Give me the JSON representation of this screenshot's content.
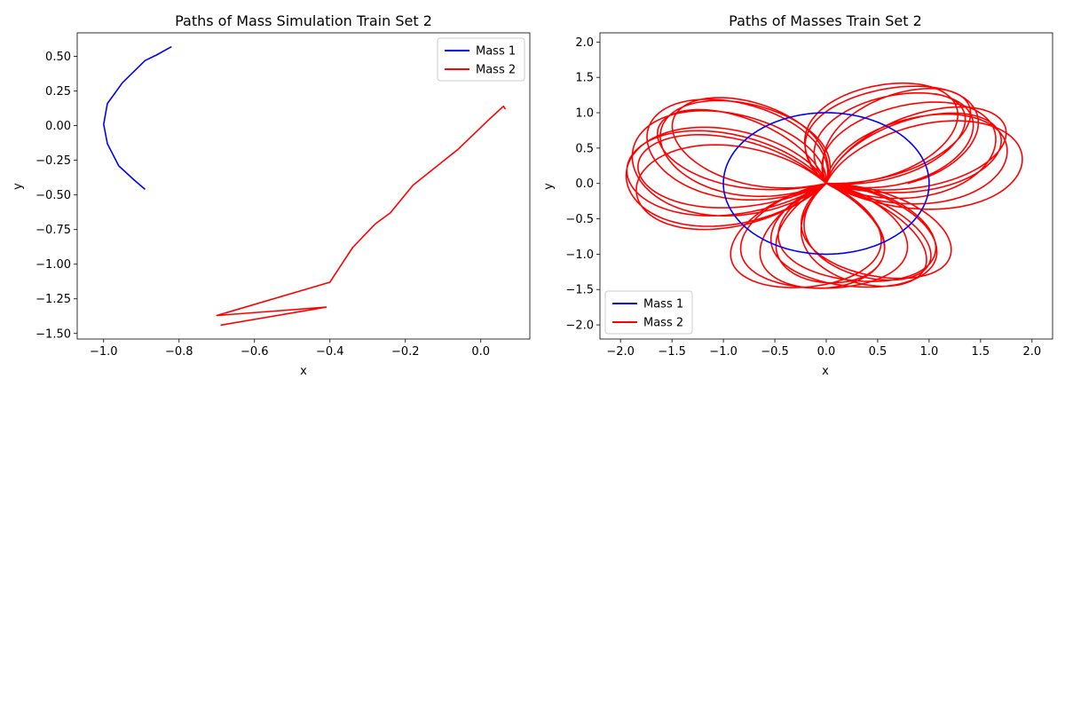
{
  "chart_data": [
    {
      "type": "line",
      "title": "Paths of Mass Simulation Train Set 2",
      "xlabel": "x",
      "ylabel": "y",
      "xlim": [
        -1.07,
        0.13
      ],
      "ylim": [
        -1.54,
        0.67
      ],
      "xticks": [
        -1.0,
        -0.8,
        -0.6,
        -0.4,
        -0.2,
        0.0
      ],
      "xtick_labels": [
        "−1.0",
        "−0.8",
        "−0.6",
        "−0.4",
        "−0.2",
        "0.0"
      ],
      "yticks": [
        0.5,
        0.25,
        0.0,
        -0.25,
        -0.5,
        -0.75,
        -1.0,
        -1.25,
        -1.5
      ],
      "ytick_labels": [
        "0.50",
        "0.25",
        "0.00",
        "−0.25",
        "−0.50",
        "−0.75",
        "−1.00",
        "−1.25",
        "−1.50"
      ],
      "legend": "upper right",
      "series": [
        {
          "name": "Mass 1",
          "color": "#0000ff",
          "x": [
            -0.82,
            -0.86,
            -0.89,
            -0.95,
            -0.99,
            -1.0,
            -0.99,
            -0.96,
            -0.92,
            -0.89
          ],
          "y": [
            0.57,
            0.51,
            0.47,
            0.31,
            0.16,
            0.01,
            -0.13,
            -0.29,
            -0.39,
            -0.46
          ]
        },
        {
          "name": "Mass 2",
          "color": "#ff0000",
          "x": [
            0.065,
            0.06,
            0.02,
            -0.06,
            -0.18,
            -0.24,
            -0.28,
            -0.34,
            -0.4,
            -0.7,
            -0.41,
            -0.69
          ],
          "y": [
            0.12,
            0.14,
            0.04,
            -0.17,
            -0.43,
            -0.63,
            -0.71,
            -0.88,
            -1.13,
            -1.37,
            -1.31,
            -1.44
          ]
        }
      ]
    },
    {
      "type": "line",
      "title": "Paths of Masses Train Set 2",
      "xlabel": "x",
      "ylabel": "y",
      "xlim": [
        -2.2,
        2.2
      ],
      "ylim": [
        -2.2,
        2.13
      ],
      "xticks": [
        -2.0,
        -1.5,
        -1.0,
        -0.5,
        0.0,
        0.5,
        1.0,
        1.5,
        2.0
      ],
      "xtick_labels": [
        "−2.0",
        "−1.5",
        "−1.0",
        "−0.5",
        "0.0",
        "0.5",
        "1.0",
        "1.5",
        "2.0"
      ],
      "yticks": [
        2.0,
        1.5,
        1.0,
        0.5,
        0.0,
        -0.5,
        -1.0,
        -1.5,
        -2.0
      ],
      "ytick_labels": [
        "2.0",
        "1.5",
        "1.0",
        "0.5",
        "0.0",
        "−0.5",
        "−1.0",
        "−1.5",
        "−2.0"
      ],
      "legend": "lower left",
      "series": [
        {
          "name": "Mass 1",
          "color": "#0000ff",
          "path": "unit circle (radius 1.0)"
        },
        {
          "name": "Mass 2",
          "color": "#ff0000",
          "path": "rosette of loops around origin, bounded within radius ~2.0"
        }
      ]
    }
  ]
}
